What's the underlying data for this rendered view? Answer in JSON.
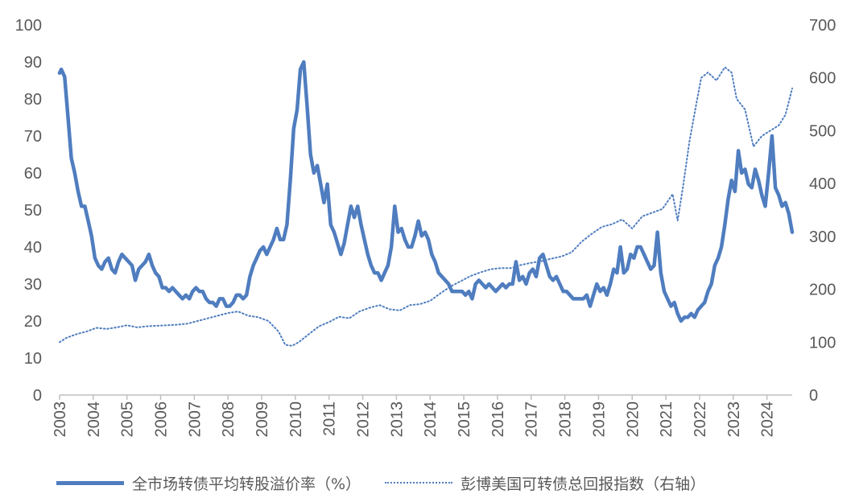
{
  "chart_data": {
    "type": "line",
    "x_ticks": [
      "2003",
      "2004",
      "2005",
      "2006",
      "2007",
      "2008",
      "2009",
      "2010",
      "2011",
      "2012",
      "2013",
      "2014",
      "2015",
      "2016",
      "2017",
      "2018",
      "2019",
      "2020",
      "2021",
      "2022",
      "2023",
      "2024"
    ],
    "x_range": [
      2003.0,
      2024.75
    ],
    "y_left": {
      "range": [
        0,
        100
      ],
      "ticks": [
        "0",
        "10",
        "20",
        "30",
        "40",
        "50",
        "60",
        "70",
        "80",
        "90",
        "100"
      ]
    },
    "y_right": {
      "range": [
        0,
        700
      ],
      "ticks": [
        "0",
        "100",
        "200",
        "300",
        "400",
        "500",
        "600",
        "700"
      ]
    },
    "grid": false,
    "legend_position": "bottom",
    "series": [
      {
        "name": "全市场转债平均转股溢价率（%）",
        "axis": "left",
        "style": "solid",
        "color": "#4F7DBF",
        "points": [
          [
            2003.0,
            87
          ],
          [
            2003.05,
            88
          ],
          [
            2003.15,
            86
          ],
          [
            2003.25,
            75
          ],
          [
            2003.35,
            64
          ],
          [
            2003.45,
            60
          ],
          [
            2003.55,
            55
          ],
          [
            2003.65,
            51
          ],
          [
            2003.75,
            51
          ],
          [
            2003.85,
            47
          ],
          [
            2003.95,
            43
          ],
          [
            2004.05,
            37
          ],
          [
            2004.15,
            35
          ],
          [
            2004.25,
            34
          ],
          [
            2004.35,
            36
          ],
          [
            2004.45,
            37
          ],
          [
            2004.55,
            34
          ],
          [
            2004.65,
            33
          ],
          [
            2004.75,
            36
          ],
          [
            2004.85,
            38
          ],
          [
            2004.95,
            37
          ],
          [
            2005.05,
            36
          ],
          [
            2005.15,
            35
          ],
          [
            2005.25,
            31
          ],
          [
            2005.35,
            34
          ],
          [
            2005.45,
            35
          ],
          [
            2005.55,
            36
          ],
          [
            2005.65,
            38
          ],
          [
            2005.75,
            35
          ],
          [
            2005.85,
            33
          ],
          [
            2005.95,
            32
          ],
          [
            2006.05,
            29
          ],
          [
            2006.15,
            29
          ],
          [
            2006.25,
            28
          ],
          [
            2006.35,
            29
          ],
          [
            2006.45,
            28
          ],
          [
            2006.55,
            27
          ],
          [
            2006.65,
            26
          ],
          [
            2006.75,
            27
          ],
          [
            2006.85,
            26
          ],
          [
            2006.95,
            28
          ],
          [
            2007.05,
            29
          ],
          [
            2007.15,
            28
          ],
          [
            2007.25,
            28
          ],
          [
            2007.35,
            26
          ],
          [
            2007.45,
            25
          ],
          [
            2007.55,
            25
          ],
          [
            2007.65,
            24
          ],
          [
            2007.75,
            26
          ],
          [
            2007.85,
            26
          ],
          [
            2007.95,
            24
          ],
          [
            2008.05,
            24
          ],
          [
            2008.15,
            25
          ],
          [
            2008.25,
            27
          ],
          [
            2008.35,
            27
          ],
          [
            2008.45,
            26
          ],
          [
            2008.55,
            27
          ],
          [
            2008.65,
            32
          ],
          [
            2008.75,
            35
          ],
          [
            2008.85,
            37
          ],
          [
            2008.95,
            39
          ],
          [
            2009.05,
            40
          ],
          [
            2009.15,
            38
          ],
          [
            2009.25,
            40
          ],
          [
            2009.35,
            42
          ],
          [
            2009.45,
            45
          ],
          [
            2009.55,
            42
          ],
          [
            2009.65,
            42
          ],
          [
            2009.75,
            46
          ],
          [
            2009.85,
            58
          ],
          [
            2009.95,
            72
          ],
          [
            2010.05,
            77
          ],
          [
            2010.15,
            88
          ],
          [
            2010.25,
            90
          ],
          [
            2010.35,
            78
          ],
          [
            2010.45,
            65
          ],
          [
            2010.55,
            60
          ],
          [
            2010.65,
            62
          ],
          [
            2010.75,
            57
          ],
          [
            2010.85,
            52
          ],
          [
            2010.95,
            57
          ],
          [
            2011.05,
            46
          ],
          [
            2011.15,
            44
          ],
          [
            2011.25,
            41
          ],
          [
            2011.35,
            38
          ],
          [
            2011.45,
            41
          ],
          [
            2011.55,
            46
          ],
          [
            2011.65,
            51
          ],
          [
            2011.75,
            48
          ],
          [
            2011.85,
            51
          ],
          [
            2011.95,
            46
          ],
          [
            2012.05,
            42
          ],
          [
            2012.15,
            38
          ],
          [
            2012.25,
            35
          ],
          [
            2012.35,
            33
          ],
          [
            2012.45,
            33
          ],
          [
            2012.55,
            31
          ],
          [
            2012.65,
            33
          ],
          [
            2012.75,
            35
          ],
          [
            2012.85,
            40
          ],
          [
            2012.95,
            51
          ],
          [
            2013.05,
            44
          ],
          [
            2013.15,
            45
          ],
          [
            2013.25,
            42
          ],
          [
            2013.35,
            40
          ],
          [
            2013.45,
            40
          ],
          [
            2013.55,
            43
          ],
          [
            2013.65,
            47
          ],
          [
            2013.75,
            43
          ],
          [
            2013.85,
            44
          ],
          [
            2013.95,
            42
          ],
          [
            2014.05,
            38
          ],
          [
            2014.15,
            36
          ],
          [
            2014.25,
            33
          ],
          [
            2014.35,
            32
          ],
          [
            2014.45,
            31
          ],
          [
            2014.55,
            30
          ],
          [
            2014.65,
            28
          ],
          [
            2014.75,
            28
          ],
          [
            2014.85,
            28
          ],
          [
            2014.95,
            28
          ],
          [
            2015.05,
            27
          ],
          [
            2015.15,
            28
          ],
          [
            2015.25,
            26
          ],
          [
            2015.35,
            30
          ],
          [
            2015.45,
            31
          ],
          [
            2015.55,
            30
          ],
          [
            2015.65,
            29
          ],
          [
            2015.75,
            30
          ],
          [
            2015.85,
            29
          ],
          [
            2015.95,
            28
          ],
          [
            2016.05,
            29
          ],
          [
            2016.15,
            30
          ],
          [
            2016.25,
            29
          ],
          [
            2016.35,
            30
          ],
          [
            2016.45,
            30
          ],
          [
            2016.55,
            36
          ],
          [
            2016.65,
            31
          ],
          [
            2016.75,
            32
          ],
          [
            2016.85,
            30
          ],
          [
            2016.95,
            33
          ],
          [
            2017.05,
            34
          ],
          [
            2017.15,
            32
          ],
          [
            2017.25,
            37
          ],
          [
            2017.35,
            38
          ],
          [
            2017.45,
            35
          ],
          [
            2017.55,
            32
          ],
          [
            2017.65,
            31
          ],
          [
            2017.75,
            32
          ],
          [
            2017.85,
            30
          ],
          [
            2017.95,
            28
          ],
          [
            2018.05,
            28
          ],
          [
            2018.15,
            27
          ],
          [
            2018.25,
            26
          ],
          [
            2018.35,
            26
          ],
          [
            2018.45,
            26
          ],
          [
            2018.55,
            26
          ],
          [
            2018.65,
            27
          ],
          [
            2018.75,
            24
          ],
          [
            2018.85,
            27
          ],
          [
            2018.95,
            30
          ],
          [
            2019.05,
            28
          ],
          [
            2019.15,
            29
          ],
          [
            2019.25,
            27
          ],
          [
            2019.35,
            30
          ],
          [
            2019.45,
            34
          ],
          [
            2019.55,
            33
          ],
          [
            2019.65,
            40
          ],
          [
            2019.75,
            33
          ],
          [
            2019.85,
            34
          ],
          [
            2019.95,
            38
          ],
          [
            2020.05,
            37
          ],
          [
            2020.15,
            40
          ],
          [
            2020.25,
            40
          ],
          [
            2020.35,
            38
          ],
          [
            2020.45,
            36
          ],
          [
            2020.55,
            34
          ],
          [
            2020.65,
            35
          ],
          [
            2020.75,
            44
          ],
          [
            2020.85,
            33
          ],
          [
            2020.95,
            28
          ],
          [
            2021.05,
            26
          ],
          [
            2021.15,
            24
          ],
          [
            2021.25,
            25
          ],
          [
            2021.35,
            22
          ],
          [
            2021.45,
            20
          ],
          [
            2021.55,
            21
          ],
          [
            2021.65,
            21
          ],
          [
            2021.75,
            22
          ],
          [
            2021.85,
            21
          ],
          [
            2021.95,
            23
          ],
          [
            2022.05,
            24
          ],
          [
            2022.15,
            25
          ],
          [
            2022.25,
            28
          ],
          [
            2022.35,
            30
          ],
          [
            2022.45,
            35
          ],
          [
            2022.55,
            37
          ],
          [
            2022.65,
            40
          ],
          [
            2022.75,
            46
          ],
          [
            2022.85,
            53
          ],
          [
            2022.95,
            58
          ],
          [
            2023.05,
            55
          ],
          [
            2023.15,
            66
          ],
          [
            2023.25,
            60
          ],
          [
            2023.35,
            61
          ],
          [
            2023.45,
            57
          ],
          [
            2023.55,
            56
          ],
          [
            2023.65,
            61
          ],
          [
            2023.75,
            58
          ],
          [
            2023.85,
            54
          ],
          [
            2023.95,
            51
          ],
          [
            2024.05,
            60
          ],
          [
            2024.15,
            70
          ],
          [
            2024.25,
            56
          ],
          [
            2024.35,
            54
          ],
          [
            2024.45,
            51
          ],
          [
            2024.55,
            52
          ],
          [
            2024.65,
            49
          ],
          [
            2024.75,
            44
          ]
        ]
      },
      {
        "name": "彭博美国可转债总回报指数（右轴）",
        "axis": "right",
        "style": "dotted",
        "color": "#4F7DBF",
        "points": [
          [
            2003.0,
            100
          ],
          [
            2003.2,
            108
          ],
          [
            2003.5,
            115
          ],
          [
            2003.8,
            120
          ],
          [
            2004.1,
            127
          ],
          [
            2004.4,
            125
          ],
          [
            2004.7,
            128
          ],
          [
            2005.0,
            132
          ],
          [
            2005.3,
            128
          ],
          [
            2005.6,
            130
          ],
          [
            2005.9,
            131
          ],
          [
            2006.2,
            132
          ],
          [
            2006.5,
            133
          ],
          [
            2006.8,
            135
          ],
          [
            2007.1,
            140
          ],
          [
            2007.4,
            145
          ],
          [
            2007.7,
            150
          ],
          [
            2008.0,
            155
          ],
          [
            2008.3,
            158
          ],
          [
            2008.6,
            150
          ],
          [
            2008.9,
            147
          ],
          [
            2009.2,
            140
          ],
          [
            2009.5,
            120
          ],
          [
            2009.7,
            95
          ],
          [
            2009.9,
            93
          ],
          [
            2010.1,
            100
          ],
          [
            2010.4,
            115
          ],
          [
            2010.7,
            130
          ],
          [
            2011.0,
            138
          ],
          [
            2011.3,
            148
          ],
          [
            2011.6,
            145
          ],
          [
            2011.9,
            158
          ],
          [
            2012.2,
            165
          ],
          [
            2012.5,
            170
          ],
          [
            2012.8,
            162
          ],
          [
            2013.1,
            160
          ],
          [
            2013.4,
            170
          ],
          [
            2013.7,
            172
          ],
          [
            2014.0,
            178
          ],
          [
            2014.3,
            192
          ],
          [
            2014.6,
            205
          ],
          [
            2014.9,
            215
          ],
          [
            2015.2,
            225
          ],
          [
            2015.5,
            232
          ],
          [
            2015.8,
            238
          ],
          [
            2016.1,
            240
          ],
          [
            2016.4,
            240
          ],
          [
            2016.7,
            246
          ],
          [
            2017.0,
            250
          ],
          [
            2017.3,
            253
          ],
          [
            2017.6,
            258
          ],
          [
            2017.9,
            262
          ],
          [
            2018.2,
            270
          ],
          [
            2018.5,
            290
          ],
          [
            2018.8,
            305
          ],
          [
            2019.1,
            318
          ],
          [
            2019.4,
            323
          ],
          [
            2019.7,
            332
          ],
          [
            2020.0,
            315
          ],
          [
            2020.3,
            338
          ],
          [
            2020.6,
            345
          ],
          [
            2020.9,
            352
          ],
          [
            2021.2,
            380
          ],
          [
            2021.35,
            330
          ],
          [
            2021.5,
            390
          ],
          [
            2021.7,
            480
          ],
          [
            2021.9,
            550
          ],
          [
            2022.05,
            600
          ],
          [
            2022.25,
            610
          ],
          [
            2022.5,
            595
          ],
          [
            2022.75,
            620
          ],
          [
            2022.95,
            610
          ],
          [
            2023.1,
            560
          ],
          [
            2023.35,
            540
          ],
          [
            2023.6,
            470
          ],
          [
            2023.85,
            490
          ],
          [
            2024.1,
            500
          ],
          [
            2024.35,
            510
          ],
          [
            2024.55,
            530
          ],
          [
            2024.75,
            580
          ]
        ]
      }
    ]
  },
  "legend": {
    "items": [
      {
        "label": "全市场转债平均转股溢价率（%）"
      },
      {
        "label": "彭博美国可转债总回报指数（右轴）"
      }
    ]
  }
}
